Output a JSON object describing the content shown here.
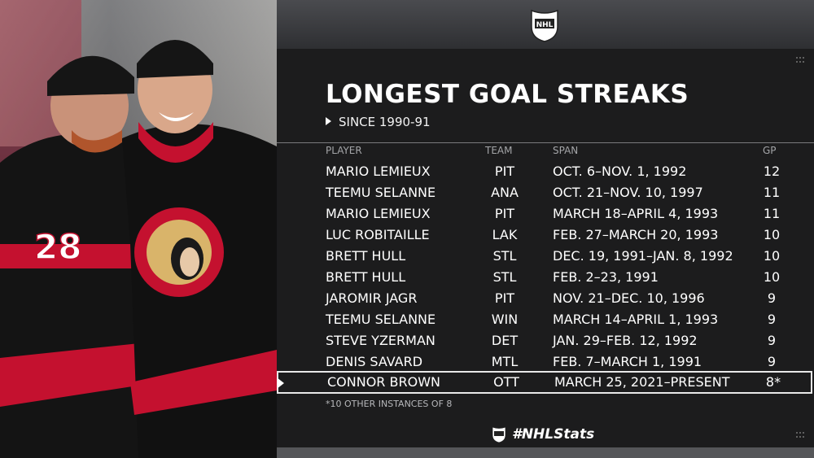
{
  "header": {
    "title": "LONGEST GOAL STREAKS",
    "subtitle": "SINCE 1990-91"
  },
  "table": {
    "columns": {
      "player": "PLAYER",
      "team": "TEAM",
      "span": "SPAN",
      "gp": "GP"
    },
    "rows": [
      {
        "player": "MARIO LEMIEUX",
        "team": "PIT",
        "span": "OCT. 6–NOV. 1, 1992",
        "gp": "12"
      },
      {
        "player": "TEEMU SELANNE",
        "team": "ANA",
        "span": "OCT. 21–NOV. 10, 1997",
        "gp": "11"
      },
      {
        "player": "MARIO LEMIEUX",
        "team": "PIT",
        "span": "MARCH 18–APRIL 4, 1993",
        "gp": "11"
      },
      {
        "player": "LUC ROBITAILLE",
        "team": "LAK",
        "span": "FEB. 27–MARCH 20, 1993",
        "gp": "10"
      },
      {
        "player": "BRETT HULL",
        "team": "STL",
        "span": "DEC. 19, 1991–JAN. 8, 1992",
        "gp": "10"
      },
      {
        "player": "BRETT HULL",
        "team": "STL",
        "span": "FEB. 2–23, 1991",
        "gp": "10"
      },
      {
        "player": "JAROMIR JAGR",
        "team": "PIT",
        "span": "NOV. 21–DEC. 10, 1996",
        "gp": "9"
      },
      {
        "player": "TEEMU SELANNE",
        "team": "WIN",
        "span": "MARCH 14–APRIL 1, 1993",
        "gp": "9"
      },
      {
        "player": "STEVE YZERMAN",
        "team": "DET",
        "span": "JAN. 29–FEB. 12, 1992",
        "gp": "9"
      },
      {
        "player": "DENIS SAVARD",
        "team": "MTL",
        "span": "FEB. 7–MARCH 1, 1991",
        "gp": "9"
      },
      {
        "player": "CONNOR BROWN",
        "team": "OTT",
        "span": "MARCH 25, 2021–PRESENT",
        "gp": "8*"
      }
    ]
  },
  "footnote": "*10 OTHER INSTANCES OF 8",
  "branding": {
    "hashtag": "#NHLStats",
    "logo_icon": "nhl-shield-icon"
  },
  "photo": {
    "jersey_number": "28",
    "description_icon": "hockey-players-photo"
  },
  "colors": {
    "background": "#1c1c1d",
    "header_bar": "#3a3b3e",
    "senators_red": "#c4112f",
    "text": "#ffffff"
  }
}
